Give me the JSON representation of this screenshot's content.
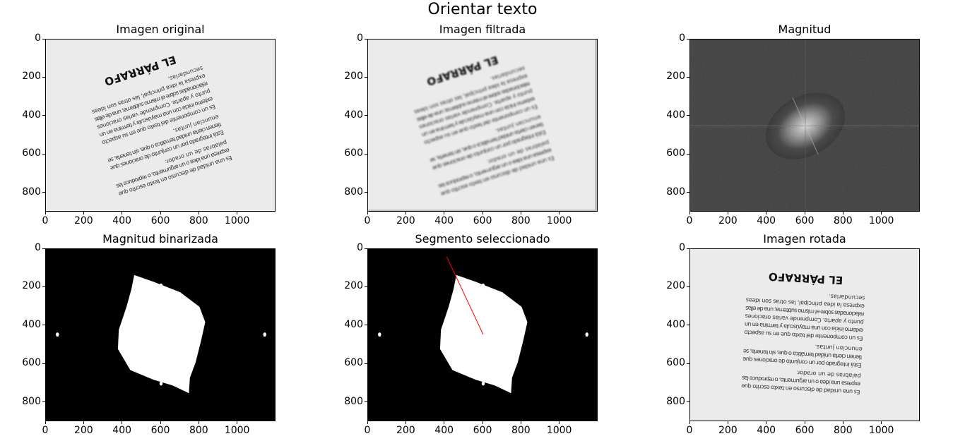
{
  "figure": {
    "title": "Orientar texto"
  },
  "colors": {
    "page_bg": "#ebebeb",
    "text": "#333333",
    "mask": "#000000",
    "blob": "#ffffff",
    "segment": "#ff0000"
  },
  "document_text": {
    "heading": "EL PÁRRAFO",
    "lines": [
      "Es   una   unidad   de   discurso   en   texto   escrito   que",
      "expresa  una idea o un argumento, o reproduce las",
      "palabras de un orador.",
      "Está  integrado  por  un  conjunto  de  oraciones  que",
      "tienen cierta unidad temática o que, sin tenerla, se",
      "enuncian juntas.",
      "Es  un  componente  del  texto  que  en  su  aspecto",
      "externo inicia con una mayúscula y termina en un",
      "punto    y    aparte.   Comprende    varias    oraciones",
      "relacionadas sobre el mismo subtema; una de ellas",
      "expresa    la    idea    principal,    las    otras    son    ideas",
      "secundarias."
    ]
  },
  "panels": [
    {
      "id": "original",
      "title": "Imagen original",
      "x_ticks": [
        "0",
        "200",
        "400",
        "600",
        "800",
        "1000"
      ],
      "y_ticks": [
        "0",
        "200",
        "400",
        "600",
        "800"
      ]
    },
    {
      "id": "filtrada",
      "title": "Imagen filtrada",
      "x_ticks": [
        "0",
        "200",
        "400",
        "600",
        "800",
        "1000"
      ],
      "y_ticks": [
        "0",
        "200",
        "400",
        "600",
        "800"
      ]
    },
    {
      "id": "magnitud",
      "title": "Magnitud",
      "x_ticks": [
        "0",
        "200",
        "400",
        "600",
        "800",
        "1000"
      ],
      "y_ticks": [
        "0",
        "200",
        "400",
        "600",
        "800"
      ]
    },
    {
      "id": "binarizada",
      "title": "Magnitud binarizada",
      "x_ticks": [
        "0",
        "200",
        "400",
        "600",
        "800",
        "1000"
      ],
      "y_ticks": [
        "0",
        "200",
        "400",
        "600",
        "800"
      ]
    },
    {
      "id": "segmento",
      "title": "Segmento seleccionado",
      "x_ticks": [
        "0",
        "200",
        "400",
        "600",
        "800",
        "1000"
      ],
      "y_ticks": [
        "0",
        "200",
        "400",
        "600",
        "800"
      ]
    },
    {
      "id": "rotada",
      "title": "Imagen rotada",
      "x_ticks": [
        "0",
        "200",
        "400",
        "600",
        "800",
        "1000"
      ],
      "y_ticks": [
        "0",
        "200",
        "400",
        "600",
        "800"
      ]
    }
  ],
  "axis": {
    "x_max": 1200,
    "y_max": 900
  },
  "blob_polygon": [
    [
      460,
      135
    ],
    [
      560,
      170
    ],
    [
      700,
      225
    ],
    [
      800,
      300
    ],
    [
      830,
      380
    ],
    [
      810,
      470
    ],
    [
      780,
      590
    ],
    [
      750,
      670
    ],
    [
      745,
      750
    ],
    [
      660,
      710
    ],
    [
      560,
      680
    ],
    [
      440,
      630
    ],
    [
      375,
      520
    ],
    [
      380,
      420
    ],
    [
      420,
      300
    ],
    [
      445,
      210
    ]
  ],
  "side_dots": [
    [
      60,
      445
    ],
    [
      1140,
      445
    ],
    [
      600,
      190
    ],
    [
      600,
      700
    ]
  ],
  "segment": {
    "x1": 410,
    "y1": 40,
    "x2": 600,
    "y2": 445
  }
}
